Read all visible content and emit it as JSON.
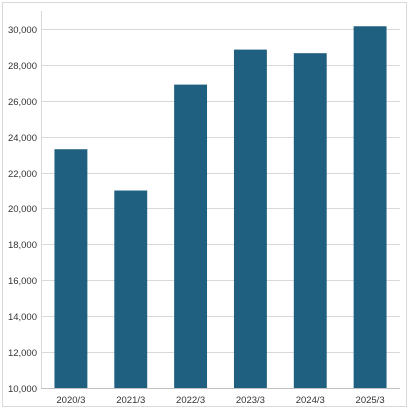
{
  "chart_data": {
    "type": "bar",
    "title": "",
    "xlabel": "",
    "ylabel": "",
    "categories": [
      "2020/3",
      "2021/3",
      "2022/3",
      "2023/3",
      "2024/3",
      "2025/3"
    ],
    "values": [
      23300,
      21000,
      26900,
      28850,
      28650,
      30150
    ],
    "ylim": [
      10000,
      31000
    ],
    "yticks": [
      10000,
      12000,
      14000,
      16000,
      18000,
      20000,
      22000,
      24000,
      26000,
      28000,
      30000
    ],
    "ytick_labels": [
      "10,000",
      "12,000",
      "14,000",
      "16,000",
      "18,000",
      "20,000",
      "22,000",
      "24,000",
      "26,000",
      "28,000",
      "30,000"
    ],
    "grid": true,
    "legend": "none",
    "bar_color": "#1f5f7f",
    "grid_color": "#d9d9d9"
  }
}
